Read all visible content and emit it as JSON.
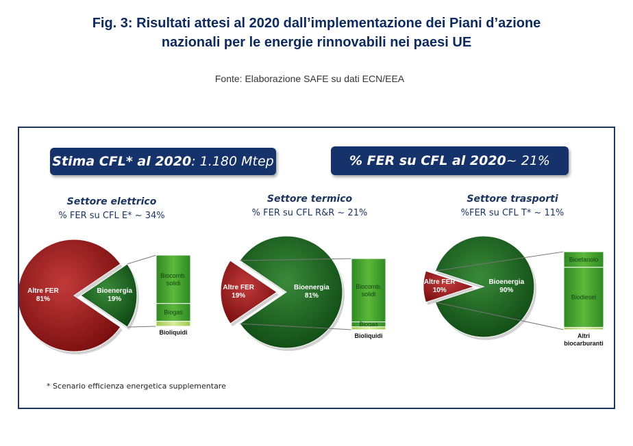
{
  "figure": {
    "title_line1": "Fig. 3: Risultati attesi al 2020 dall’implementazione dei Piani d’azione",
    "title_line2": "nazionali per le energie rinnovabili nei paesi UE",
    "source": "Fonte: Elaborazione SAFE su dati ECN/EEA"
  },
  "header": {
    "stima_bold": "Stima CFL* al 2020",
    "stima_rest": " : 1.180 Mtep",
    "fer_bold": "% FER su CFL al 2020",
    "fer_rest": " ~ 21%"
  },
  "footnote": "* Scenario efficienza energetica supplementare",
  "colors": {
    "altre_fer": "#9e1a1a",
    "bioenergia": "#1f6b24",
    "bar_green": "#3d9a2a",
    "bar_light": "#b8d86a",
    "panel_border": "#1a3466",
    "pill_bg": "#16326b"
  },
  "chart_data": [
    {
      "type": "pie",
      "title": "Settore elettrico",
      "subtitle": "% FER su CFL E* ~ 34%",
      "slices": [
        {
          "label": "Altre FER",
          "value": 81,
          "display": "81%"
        },
        {
          "label": "Bioenergia",
          "value": 19,
          "display": "19%"
        }
      ],
      "breakdown": [
        {
          "label": "Biocomb. solidi",
          "value": 68
        },
        {
          "label": "Biogas",
          "value": 25
        },
        {
          "label": "Bioliquidi",
          "value": 7
        }
      ]
    },
    {
      "type": "pie",
      "title": "Settore termico",
      "subtitle": "% FER su CFL R&R ~ 21%",
      "slices": [
        {
          "label": "Altre FER",
          "value": 19,
          "display": "19%"
        },
        {
          "label": "Bioenergia",
          "value": 81,
          "display": "81%"
        }
      ],
      "breakdown": [
        {
          "label": "Biocomb. solidi",
          "value": 89
        },
        {
          "label": "Biogas",
          "value": 7
        },
        {
          "label": "Bioliquidi",
          "value": 4
        }
      ]
    },
    {
      "type": "pie",
      "title": "Settore trasporti",
      "subtitle": "%FER su CFL T* ~ 11%",
      "slices": [
        {
          "label": "Altre FER",
          "value": 10,
          "display": "10%"
        },
        {
          "label": "Bioenergia",
          "value": 90,
          "display": "90%"
        }
      ],
      "breakdown": [
        {
          "label": "Bioetanolo",
          "value": 20
        },
        {
          "label": "Biodiesel",
          "value": 77
        },
        {
          "label": "Altri biocarburanti",
          "value": 3
        }
      ]
    }
  ]
}
